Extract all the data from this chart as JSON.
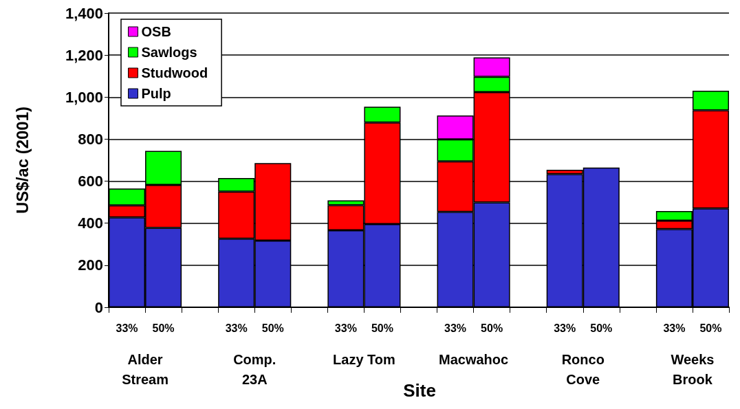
{
  "chart_data": {
    "type": "bar",
    "stacked": true,
    "xlabel": "Site",
    "ylabel": "US$/ac (2001)",
    "categories": [
      "33%",
      "50%",
      null,
      "33%",
      "50%",
      null,
      "33%",
      "50%",
      null,
      "33%",
      "50%",
      null,
      "33%",
      "50%",
      null,
      "33%",
      "50%"
    ],
    "series": [
      {
        "name": "Pulp",
        "color": "#3333cc",
        "values": [
          428,
          378,
          null,
          326,
          317,
          null,
          366,
          396,
          null,
          454,
          499,
          null,
          634,
          665,
          null,
          372,
          470
        ]
      },
      {
        "name": "Studwood",
        "color": "#ff0000",
        "values": [
          57,
          204,
          null,
          224,
          369,
          null,
          120,
          483,
          null,
          240,
          525,
          null,
          20,
          null,
          null,
          40,
          467
        ]
      },
      {
        "name": "Sawlogs",
        "color": "#00ff00",
        "values": [
          80,
          162,
          null,
          65,
          null,
          null,
          23,
          75,
          null,
          105,
          73,
          null,
          null,
          null,
          null,
          46,
          93
        ]
      },
      {
        "name": "OSB",
        "color": "#ff00ff",
        "values": [
          null,
          null,
          null,
          null,
          null,
          null,
          null,
          null,
          null,
          114,
          92,
          null,
          null,
          null,
          null,
          null,
          null
        ]
      }
    ],
    "annotations": [
      "Alder\nStream",
      "Comp.\n23A",
      "Lazy Tom",
      "Macwahoc",
      "Ronco\nCove",
      "Weeks\nBrook"
    ],
    "ylim": [
      0,
      1400
    ],
    "yticks": [
      0,
      200,
      400,
      600,
      800,
      {
        "value": 1000,
        "label": "1,000"
      },
      {
        "value": 1200,
        "label": "1,200"
      },
      {
        "value": 1400,
        "label": "1,400"
      }
    ],
    "grid": "y",
    "legend": "top left"
  }
}
